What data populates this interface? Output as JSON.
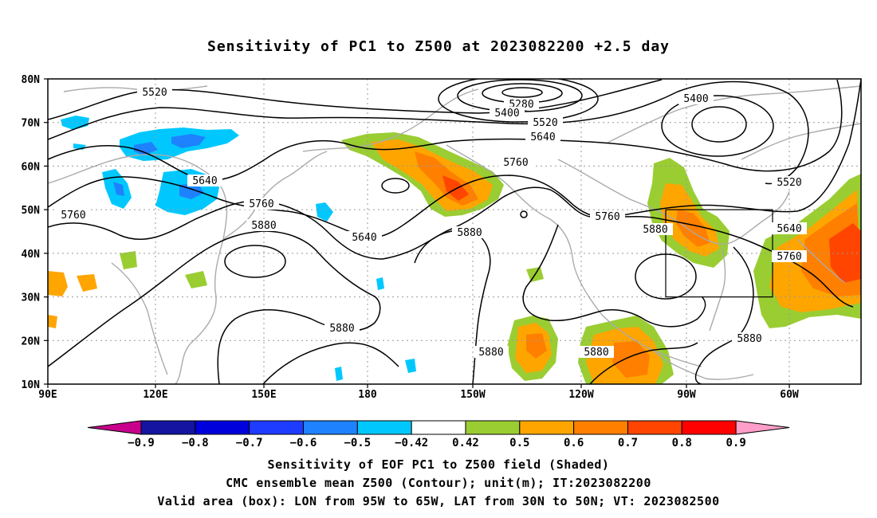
{
  "title": "Sensitivity of PC1 to Z500 at 2023082200 +2.5 day",
  "axes": {
    "lat_labels": [
      "80N",
      "70N",
      "60N",
      "50N",
      "40N",
      "30N",
      "20N",
      "10N"
    ],
    "lon_labels": [
      "90E",
      "120E",
      "150E",
      "180",
      "150W",
      "120W",
      "90W",
      "60W"
    ]
  },
  "contours": [
    {
      "label": "5280"
    },
    {
      "label": "5400"
    },
    {
      "label": "5400"
    },
    {
      "label": "5520"
    },
    {
      "label": "5520"
    },
    {
      "label": "5520"
    },
    {
      "label": "5640"
    },
    {
      "label": "5640"
    },
    {
      "label": "5640"
    },
    {
      "label": "5640"
    },
    {
      "label": "5760"
    },
    {
      "label": "5760"
    },
    {
      "label": "5760"
    },
    {
      "label": "5760"
    },
    {
      "label": "5760"
    },
    {
      "label": "5880"
    },
    {
      "label": "5880"
    },
    {
      "label": "5880"
    },
    {
      "label": "5880"
    },
    {
      "label": "5880"
    },
    {
      "label": "5880"
    }
  ],
  "colorbar": {
    "labels": [
      "-0.9",
      "-0.8",
      "-0.7",
      "-0.6",
      "-0.5",
      "-0.42",
      "0.42",
      "0.5",
      "0.6",
      "0.7",
      "0.8",
      "0.9"
    ],
    "colors": [
      "#c8008c",
      "#1414a0",
      "#0000dc",
      "#1e3cff",
      "#1e82ff",
      "#00c8ff",
      "#ffffff",
      "#9acd32",
      "#ffa500",
      "#ff7f00",
      "#ff4500",
      "#ff0000",
      "#ff9ec8"
    ]
  },
  "valid_box": {
    "lon_min": "95W",
    "lon_max": "65W",
    "lat_min": "30N",
    "lat_max": "50N"
  },
  "caption": {
    "line1": "Sensitivity of EOF PC1 to Z500 field (Shaded)",
    "line2": "CMC ensemble mean Z500 (Contour); unit(m); IT:2023082200",
    "line3": "Valid area (box): LON from 95W to 65W, LAT from 30N to 50N; VT: 2023082500"
  }
}
